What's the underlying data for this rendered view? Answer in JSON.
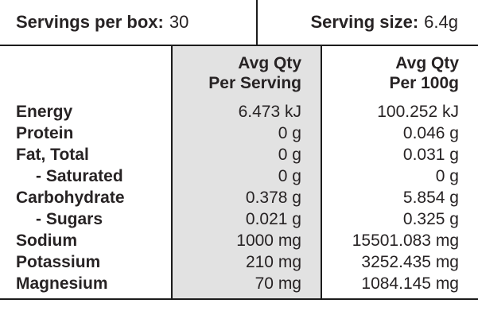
{
  "header": {
    "servings_label": "Servings per box:",
    "servings_value": "30",
    "serving_size_label": "Serving size:",
    "serving_size_value": "6.4g"
  },
  "table": {
    "columns": {
      "per_serving": {
        "line1": "Avg Qty",
        "line2": "Per Serving"
      },
      "per_100g": {
        "line1": "Avg Qty",
        "line2": "Per 100g"
      }
    },
    "rows": [
      {
        "label": "Energy",
        "indent": false,
        "per_serving": "6.473 kJ",
        "per_100g": "100.252 kJ"
      },
      {
        "label": "Protein",
        "indent": false,
        "per_serving": "0 g",
        "per_100g": "0.046 g"
      },
      {
        "label": "Fat, Total",
        "indent": false,
        "per_serving": "0 g",
        "per_100g": "0.031 g"
      },
      {
        "label": "- Saturated",
        "indent": true,
        "per_serving": "0 g",
        "per_100g": "0 g"
      },
      {
        "label": "Carbohydrate",
        "indent": false,
        "per_serving": "0.378 g",
        "per_100g": "5.854 g"
      },
      {
        "label": "- Sugars",
        "indent": true,
        "per_serving": "0.021 g",
        "per_100g": "0.325 g"
      },
      {
        "label": "Sodium",
        "indent": false,
        "per_serving": "1000 mg",
        "per_100g": "15501.083 mg"
      },
      {
        "label": "Potassium",
        "indent": false,
        "per_serving": "210 mg",
        "per_100g": "3252.435 mg"
      },
      {
        "label": "Magnesium",
        "indent": false,
        "per_serving": "70 mg",
        "per_100g": "1084.145 mg"
      }
    ]
  },
  "colors": {
    "highlight_column_bg": "#e2e2e2",
    "text": "#272324",
    "rule": "#1c1c1c"
  }
}
